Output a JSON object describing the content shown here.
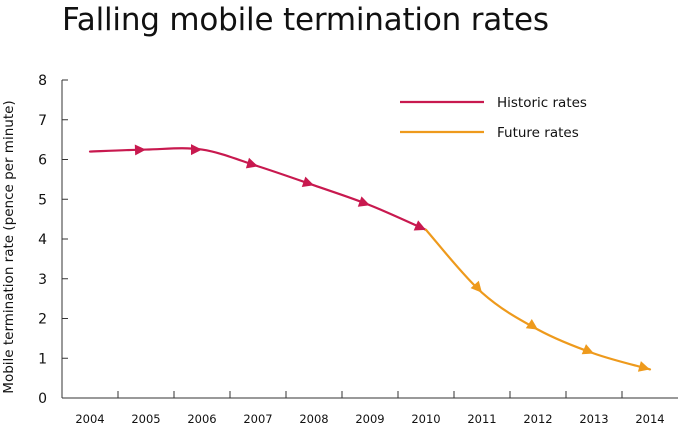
{
  "chart_data": {
    "type": "line",
    "title": "Falling mobile termination rates",
    "xlabel": "",
    "ylabel": "Mobile termination rate (pence per minute)",
    "categories": [
      "2004",
      "2005",
      "2006",
      "2007",
      "2008",
      "2009",
      "2010",
      "2011",
      "2012",
      "2013",
      "2014"
    ],
    "ylim": [
      0,
      8
    ],
    "yticks": [
      0,
      1,
      2,
      3,
      4,
      5,
      6,
      7,
      8
    ],
    "series": [
      {
        "name": "Historic rates",
        "color": "#c8194f",
        "x": [
          "2004",
          "2005",
          "2006",
          "2007",
          "2008",
          "2009",
          "2010"
        ],
        "values": [
          6.2,
          6.25,
          6.25,
          5.83,
          5.35,
          4.85,
          4.23
        ]
      },
      {
        "name": "Future rates",
        "color": "#ee9a1c",
        "x": [
          "2010",
          "2011",
          "2012",
          "2013",
          "2014"
        ],
        "values": [
          4.23,
          2.65,
          1.72,
          1.12,
          0.72
        ]
      }
    ],
    "legend_position": "top-right",
    "grid": false
  }
}
